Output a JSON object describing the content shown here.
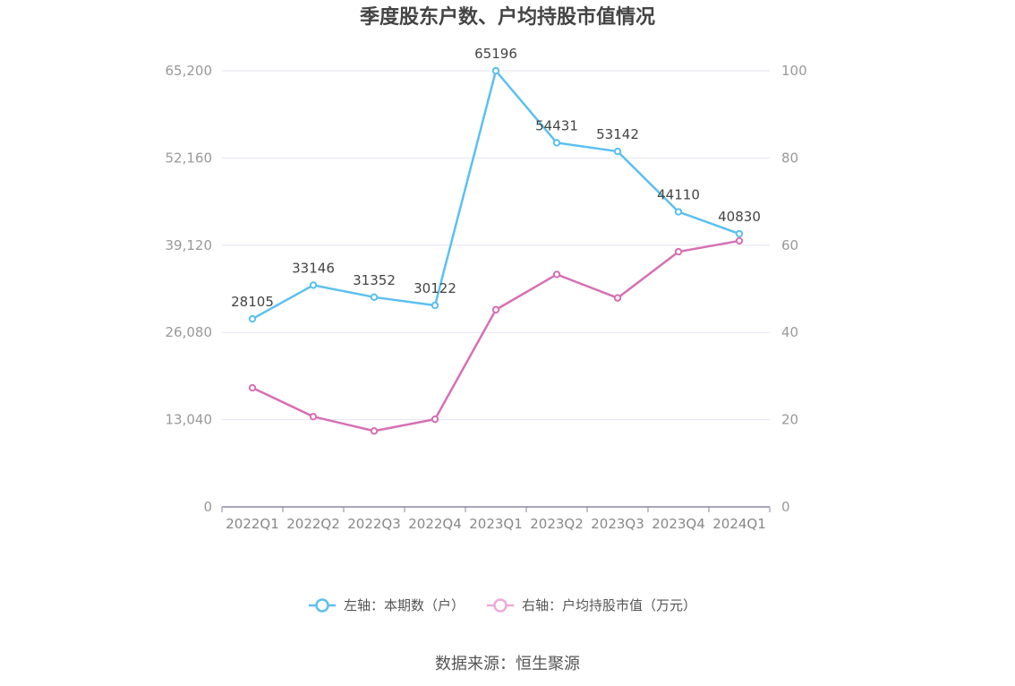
{
  "chart_data": {
    "type": "line",
    "title": "季度股东户数、户均持股市值情况",
    "categories": [
      "2022Q1",
      "2022Q2",
      "2022Q3",
      "2022Q4",
      "2023Q1",
      "2023Q2",
      "2023Q3",
      "2023Q4",
      "2024Q1"
    ],
    "y_left": {
      "ylim": [
        0,
        65200
      ],
      "ticks": [
        "0",
        "13,040",
        "26,080",
        "39,120",
        "52,160",
        "65,200"
      ]
    },
    "y_right": {
      "ylim": [
        0,
        100
      ],
      "ticks": [
        "0",
        "20",
        "40",
        "60",
        "80",
        "100"
      ]
    },
    "series": [
      {
        "name": "左轴：本期数（户）",
        "axis": "left",
        "color": "#5bc0f0",
        "values": [
          28105,
          33146,
          31352,
          30122,
          65196,
          54431,
          53142,
          44110,
          40830
        ],
        "labels": [
          "28105",
          "33146",
          "31352",
          "30122",
          "65196",
          "54431",
          "53142",
          "44110",
          "40830"
        ]
      },
      {
        "name": "右轴：户均持股市值（万元）",
        "axis": "right",
        "color": "#d670b4",
        "values": [
          27.3,
          20.7,
          17.4,
          20.1,
          45.2,
          53.3,
          47.9,
          58.5,
          61.0
        ]
      }
    ],
    "legend_position": "bottom-center",
    "grid": true
  },
  "footer": {
    "source": "数据来源：恒生聚源"
  }
}
